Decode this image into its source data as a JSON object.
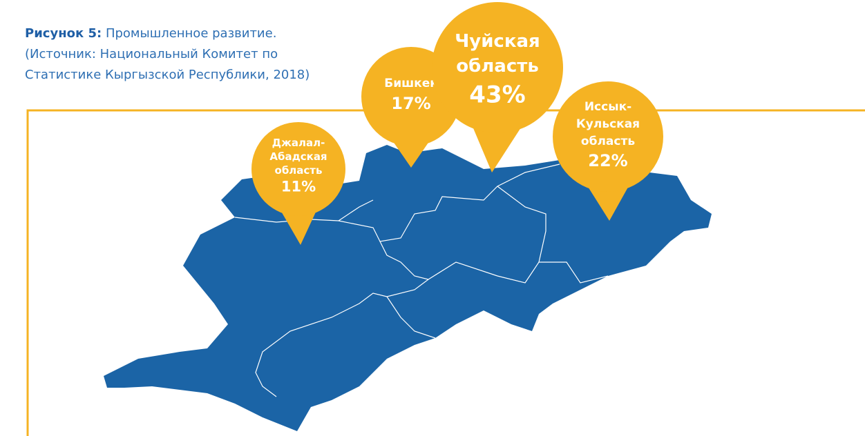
{
  "caption": {
    "label": "Рисунок 5:",
    "title": "Промышленное развитие.",
    "source_lines": [
      "(Источник: Национальный Комитет по",
      "Статистике Кыргызской Республики, 2018)"
    ]
  },
  "callouts": [
    {
      "name_lines": [
        "Джалал-",
        "Абадская",
        "область"
      ],
      "value": "11%"
    },
    {
      "name_lines": [
        "Бишкек"
      ],
      "value": "17%"
    },
    {
      "name_lines": [
        "Чуйская",
        "область"
      ],
      "value": "43%"
    },
    {
      "name_lines": [
        "Иссык-",
        "Кульская",
        "область"
      ],
      "value": "22%"
    }
  ]
}
